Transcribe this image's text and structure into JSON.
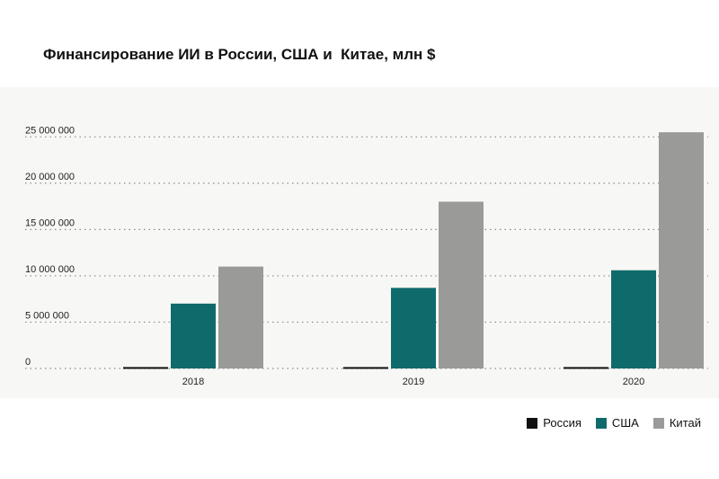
{
  "chart_data": {
    "type": "bar",
    "title": "Финансирование ИИ в России, США и  Китае, млн $",
    "xlabel": "",
    "ylabel": "",
    "categories": [
      "2018",
      "2019",
      "2020"
    ],
    "series": [
      {
        "name": "Россия",
        "color": "#111111",
        "values": [
          150000,
          150000,
          150000
        ]
      },
      {
        "name": "США",
        "color": "#0f6b6b",
        "values": [
          7000000,
          8700000,
          10600000
        ]
      },
      {
        "name": "Китай",
        "color": "#9a9a98",
        "values": [
          11000000,
          18000000,
          25500000
        ]
      }
    ],
    "yticks": [
      0,
      5000000,
      10000000,
      15000000,
      20000000,
      25000000
    ],
    "ytick_labels": [
      "0",
      "5 000 000",
      "10 000 000",
      "15 000 000",
      "20 000 000",
      "25 000 000"
    ],
    "ylim": [
      0,
      25000000
    ],
    "grid": true,
    "legend_position": "bottom-right"
  }
}
